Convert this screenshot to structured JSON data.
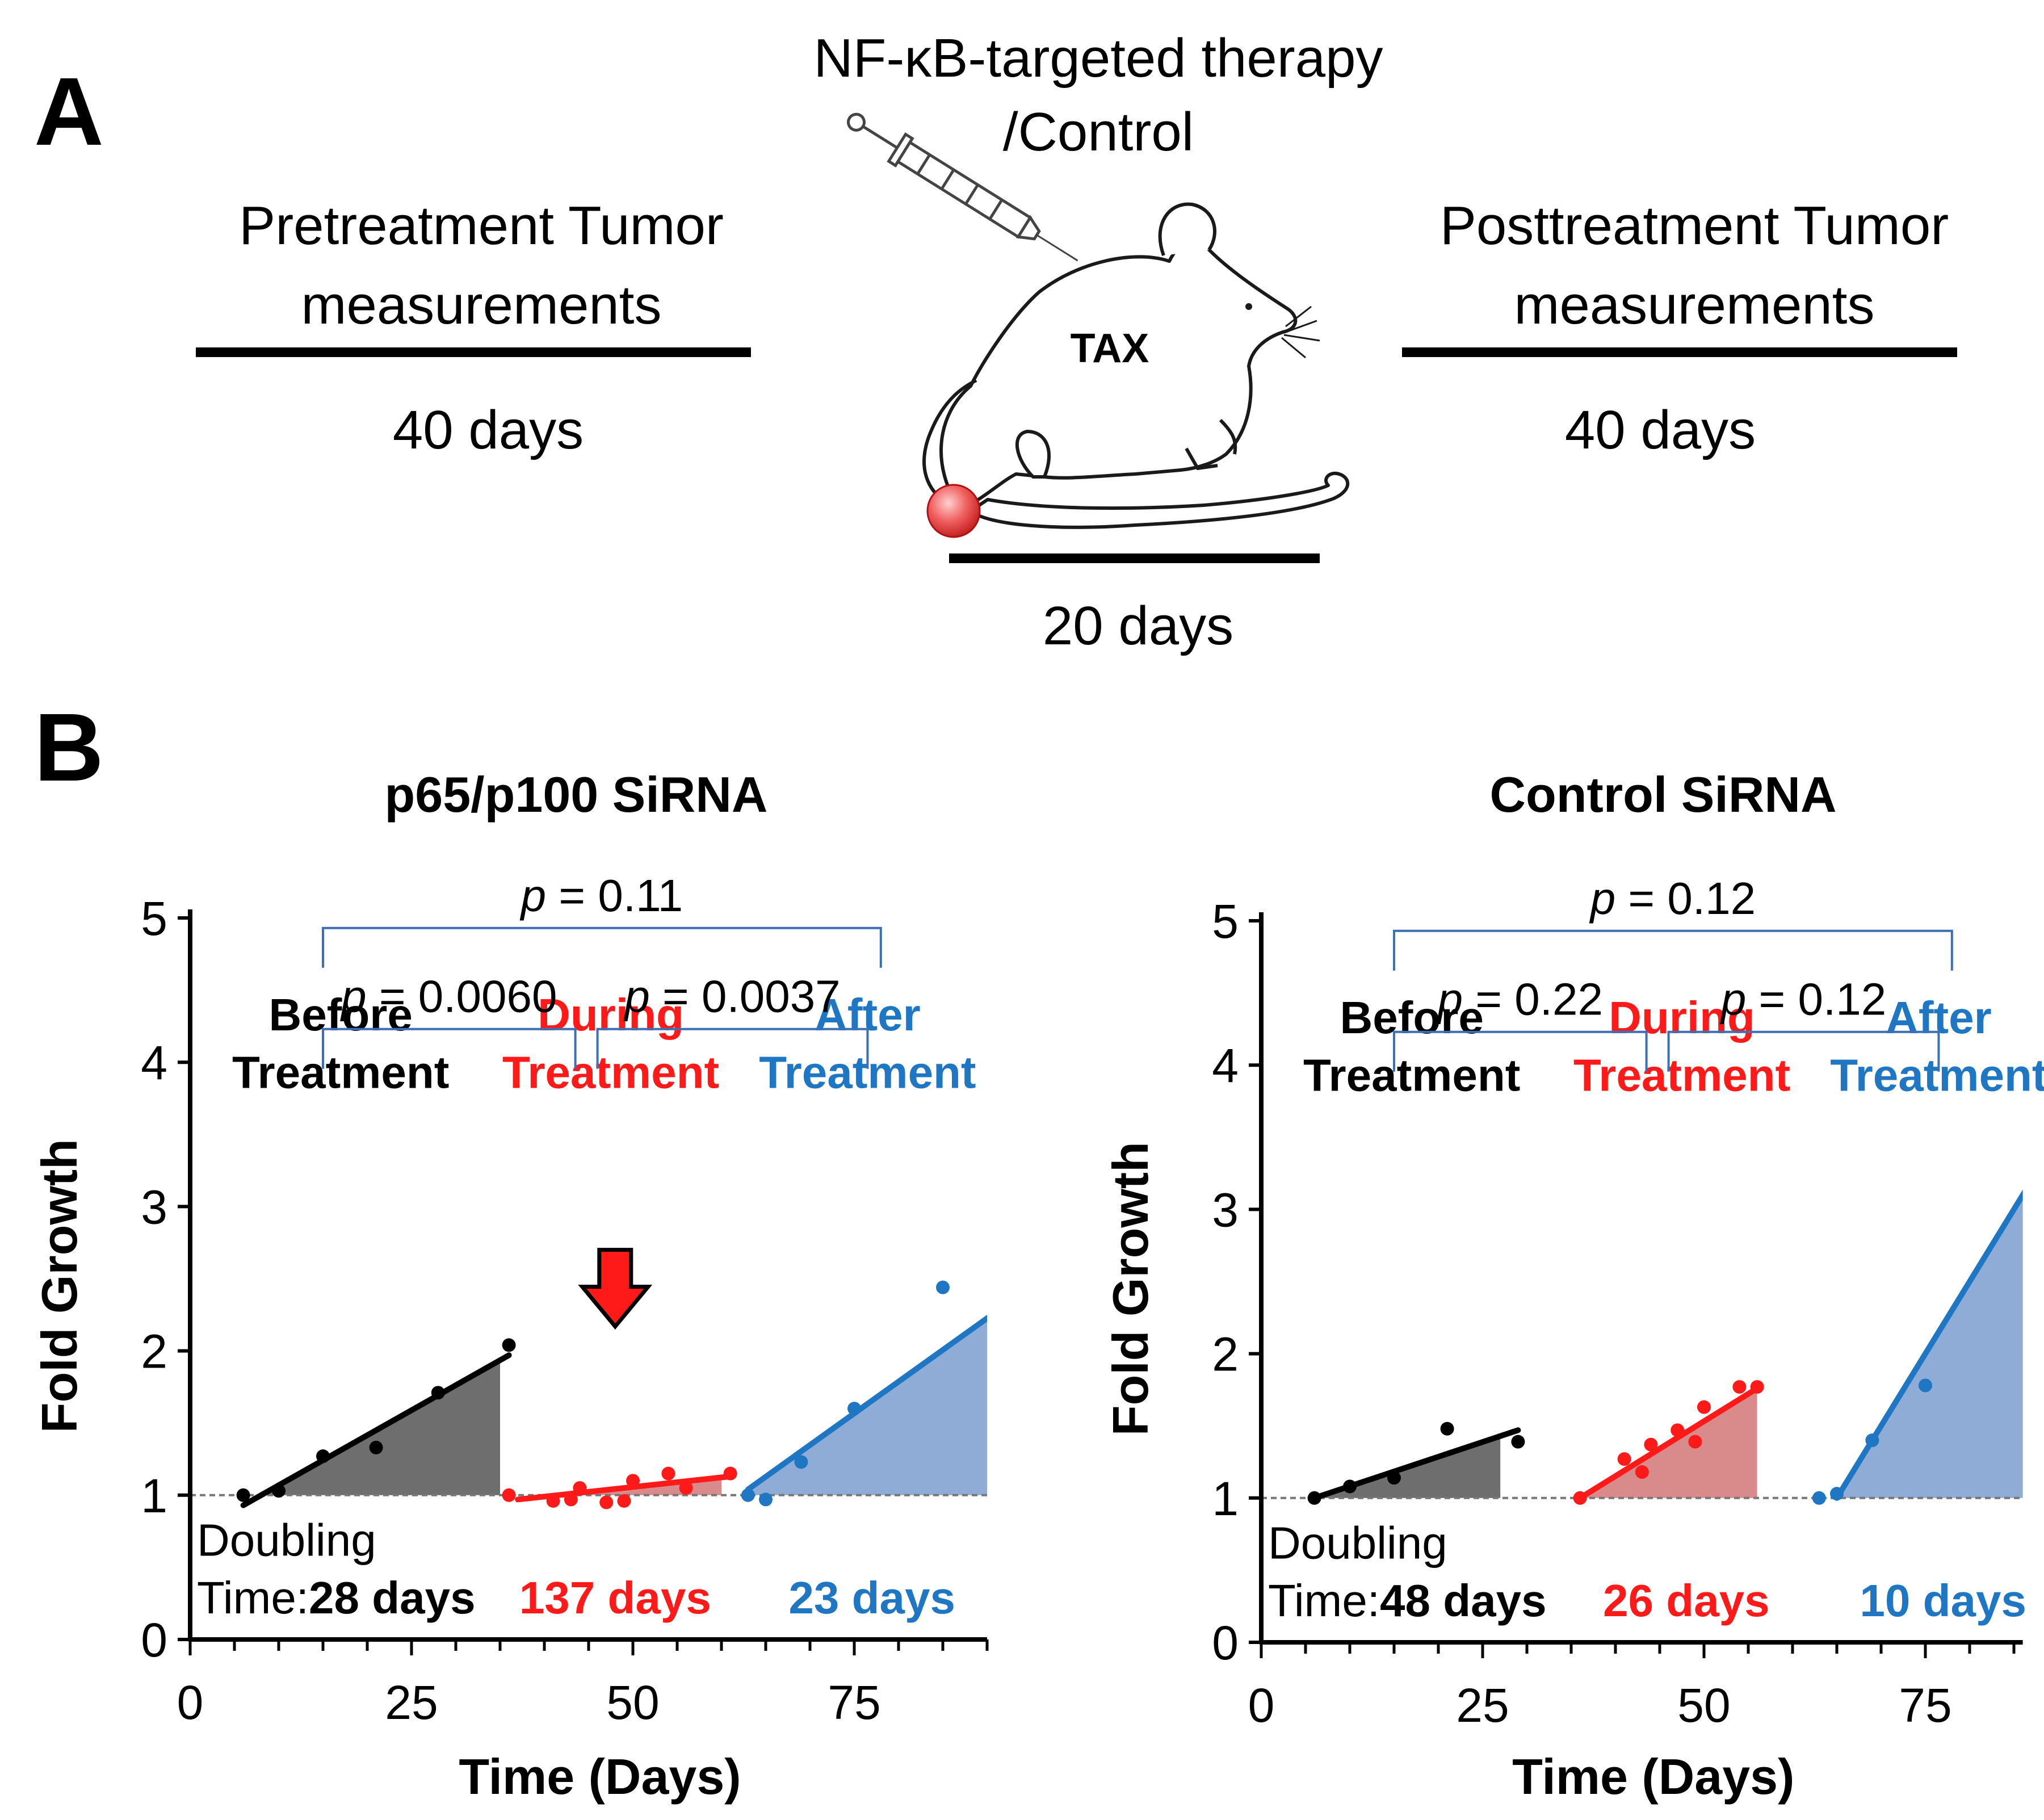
{
  "panel_a": {
    "letter": "A",
    "therapy_line1": "NF-κB-targeted therapy",
    "therapy_line2": "/Control",
    "pre_line1": "Pretreatment Tumor",
    "pre_line2": "measurements",
    "pre_duration": "40 days",
    "post_line1": "Posttreatment Tumor",
    "post_line2": "measurements",
    "post_duration": "40 days",
    "mouse_label": "TAX",
    "treatment_duration": "20 days"
  },
  "panel_b": {
    "letter": "B"
  },
  "colors": {
    "before": "#000000",
    "during": "#ff1a1a",
    "after": "#1f77c4",
    "before_fill": "#6e6e6e",
    "during_fill": "#d98a8a",
    "after_fill": "#8eacd6",
    "bracket": "#3b6fb6"
  },
  "chart_data": [
    {
      "type": "scatter",
      "title": "p65/p100 SiRNA",
      "xlabel": "Time (Days)",
      "ylabel": "Fold Growth",
      "xlim": [
        0,
        90
      ],
      "ylim": [
        0,
        5
      ],
      "xticks": [
        0,
        25,
        50,
        75
      ],
      "yticks": [
        0,
        1,
        2,
        3,
        4,
        5
      ],
      "baseline": 1,
      "pvalues": {
        "before_during": "0.0060",
        "during_after": "0.0037",
        "before_after": "0.11"
      },
      "phase_labels": {
        "before": [
          "Before",
          "Treatment"
        ],
        "during": [
          "During",
          "Treatment"
        ],
        "after": [
          "After",
          "Treatment"
        ]
      },
      "doubling_label": [
        "Doubling",
        "Time:"
      ],
      "arrow": {
        "x": 48,
        "y": 2.7
      },
      "series": [
        {
          "name": "Before Treatment",
          "doubling": "28 days",
          "points": [
            [
              6,
              1.0
            ],
            [
              10,
              1.03
            ],
            [
              15,
              1.27
            ],
            [
              21,
              1.33
            ],
            [
              28,
              1.71
            ],
            [
              36,
              2.04
            ]
          ],
          "fit": [
            [
              6,
              0.93
            ],
            [
              36,
              1.97
            ]
          ],
          "fill_end_x": 35
        },
        {
          "name": "During Treatment",
          "doubling": "137 days",
          "points": [
            [
              36,
              1.0
            ],
            [
              41,
              0.96
            ],
            [
              43,
              0.97
            ],
            [
              44,
              1.05
            ],
            [
              47,
              0.95
            ],
            [
              49,
              0.96
            ],
            [
              50,
              1.1
            ],
            [
              54,
              1.15
            ],
            [
              56,
              1.05
            ],
            [
              61,
              1.15
            ]
          ],
          "fit": [
            [
              37,
              0.97
            ],
            [
              61,
              1.13
            ]
          ],
          "fill_end_x": 60
        },
        {
          "name": "After Treatment",
          "doubling": "23 days",
          "points": [
            [
              63,
              1.0
            ],
            [
              65,
              0.97
            ],
            [
              69,
              1.23
            ],
            [
              75,
              1.6
            ],
            [
              85,
              2.44
            ]
          ],
          "fit": [
            [
              63,
              1.04
            ],
            [
              91,
              2.27
            ]
          ],
          "fill_end_x": 91
        }
      ]
    },
    {
      "type": "scatter",
      "title": "Control SiRNA",
      "xlabel": "Time (Days)",
      "ylabel": "Fold Growth",
      "xlim": [
        0,
        86
      ],
      "ylim": [
        0,
        5
      ],
      "xticks": [
        0,
        25,
        50,
        75
      ],
      "yticks": [
        0,
        1,
        2,
        3,
        4,
        5
      ],
      "baseline": 1,
      "pvalues": {
        "before_during": "0.22",
        "during_after": "0.12",
        "before_after": "0.12"
      },
      "phase_labels": {
        "before": [
          "Before",
          "Treatment"
        ],
        "during": [
          "During",
          "Treatment"
        ],
        "after": [
          "After",
          "Treatment"
        ]
      },
      "doubling_label": [
        "Doubling",
        "Time:"
      ],
      "series": [
        {
          "name": "Before Treatment",
          "doubling": "48 days",
          "points": [
            [
              6,
              1.0
            ],
            [
              10,
              1.08
            ],
            [
              15,
              1.14
            ],
            [
              21,
              1.48
            ],
            [
              29,
              1.39
            ]
          ],
          "fit": [
            [
              6,
              1.0
            ],
            [
              29,
              1.47
            ]
          ],
          "fill_end_x": 27
        },
        {
          "name": "During Treatment",
          "doubling": "26 days",
          "points": [
            [
              36,
              1.0
            ],
            [
              41,
              1.27
            ],
            [
              43,
              1.18
            ],
            [
              44,
              1.37
            ],
            [
              47,
              1.47
            ],
            [
              49,
              1.39
            ],
            [
              50,
              1.63
            ],
            [
              54,
              1.77
            ],
            [
              56,
              1.77
            ]
          ],
          "fit": [
            [
              36,
              1.0
            ],
            [
              56,
              1.76
            ]
          ],
          "fill_end_x": 56
        },
        {
          "name": "After Treatment",
          "doubling": "10 days",
          "points": [
            [
              63,
              1.0
            ],
            [
              65,
              1.03
            ],
            [
              69,
              1.4
            ],
            [
              75,
              1.78
            ]
          ],
          "fit": [
            [
              65,
              1.0
            ],
            [
              87,
              3.2
            ]
          ],
          "fill_end_x": 87
        }
      ]
    }
  ]
}
